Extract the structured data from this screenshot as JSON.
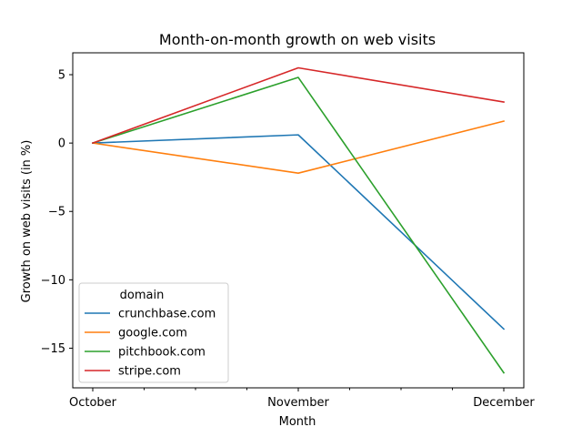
{
  "chart_data": {
    "type": "line",
    "title": "Month-on-month growth on web visits",
    "xlabel": "Month",
    "ylabel": "Growth on web visits (in %)",
    "categories": [
      "October",
      "November",
      "December"
    ],
    "ylim": [
      -17.9,
      6.6
    ],
    "yticks": [
      5,
      0,
      -5,
      -10,
      -15
    ],
    "ytick_labels": [
      "5",
      "0",
      "−5",
      "−10",
      "−15"
    ],
    "minor_xticks": 4,
    "grid": false,
    "legend": {
      "title": "domain",
      "position": "lower-left"
    },
    "series": [
      {
        "name": "crunchbase.com",
        "color": "#1f77b4",
        "values": [
          0,
          0.6,
          -13.6
        ]
      },
      {
        "name": "google.com",
        "color": "#ff7f0e",
        "values": [
          0,
          -2.2,
          1.6
        ]
      },
      {
        "name": "pitchbook.com",
        "color": "#2ca02c",
        "values": [
          0,
          4.8,
          -16.8
        ]
      },
      {
        "name": "stripe.com",
        "color": "#d62728",
        "values": [
          0,
          5.5,
          3.0
        ]
      }
    ]
  }
}
